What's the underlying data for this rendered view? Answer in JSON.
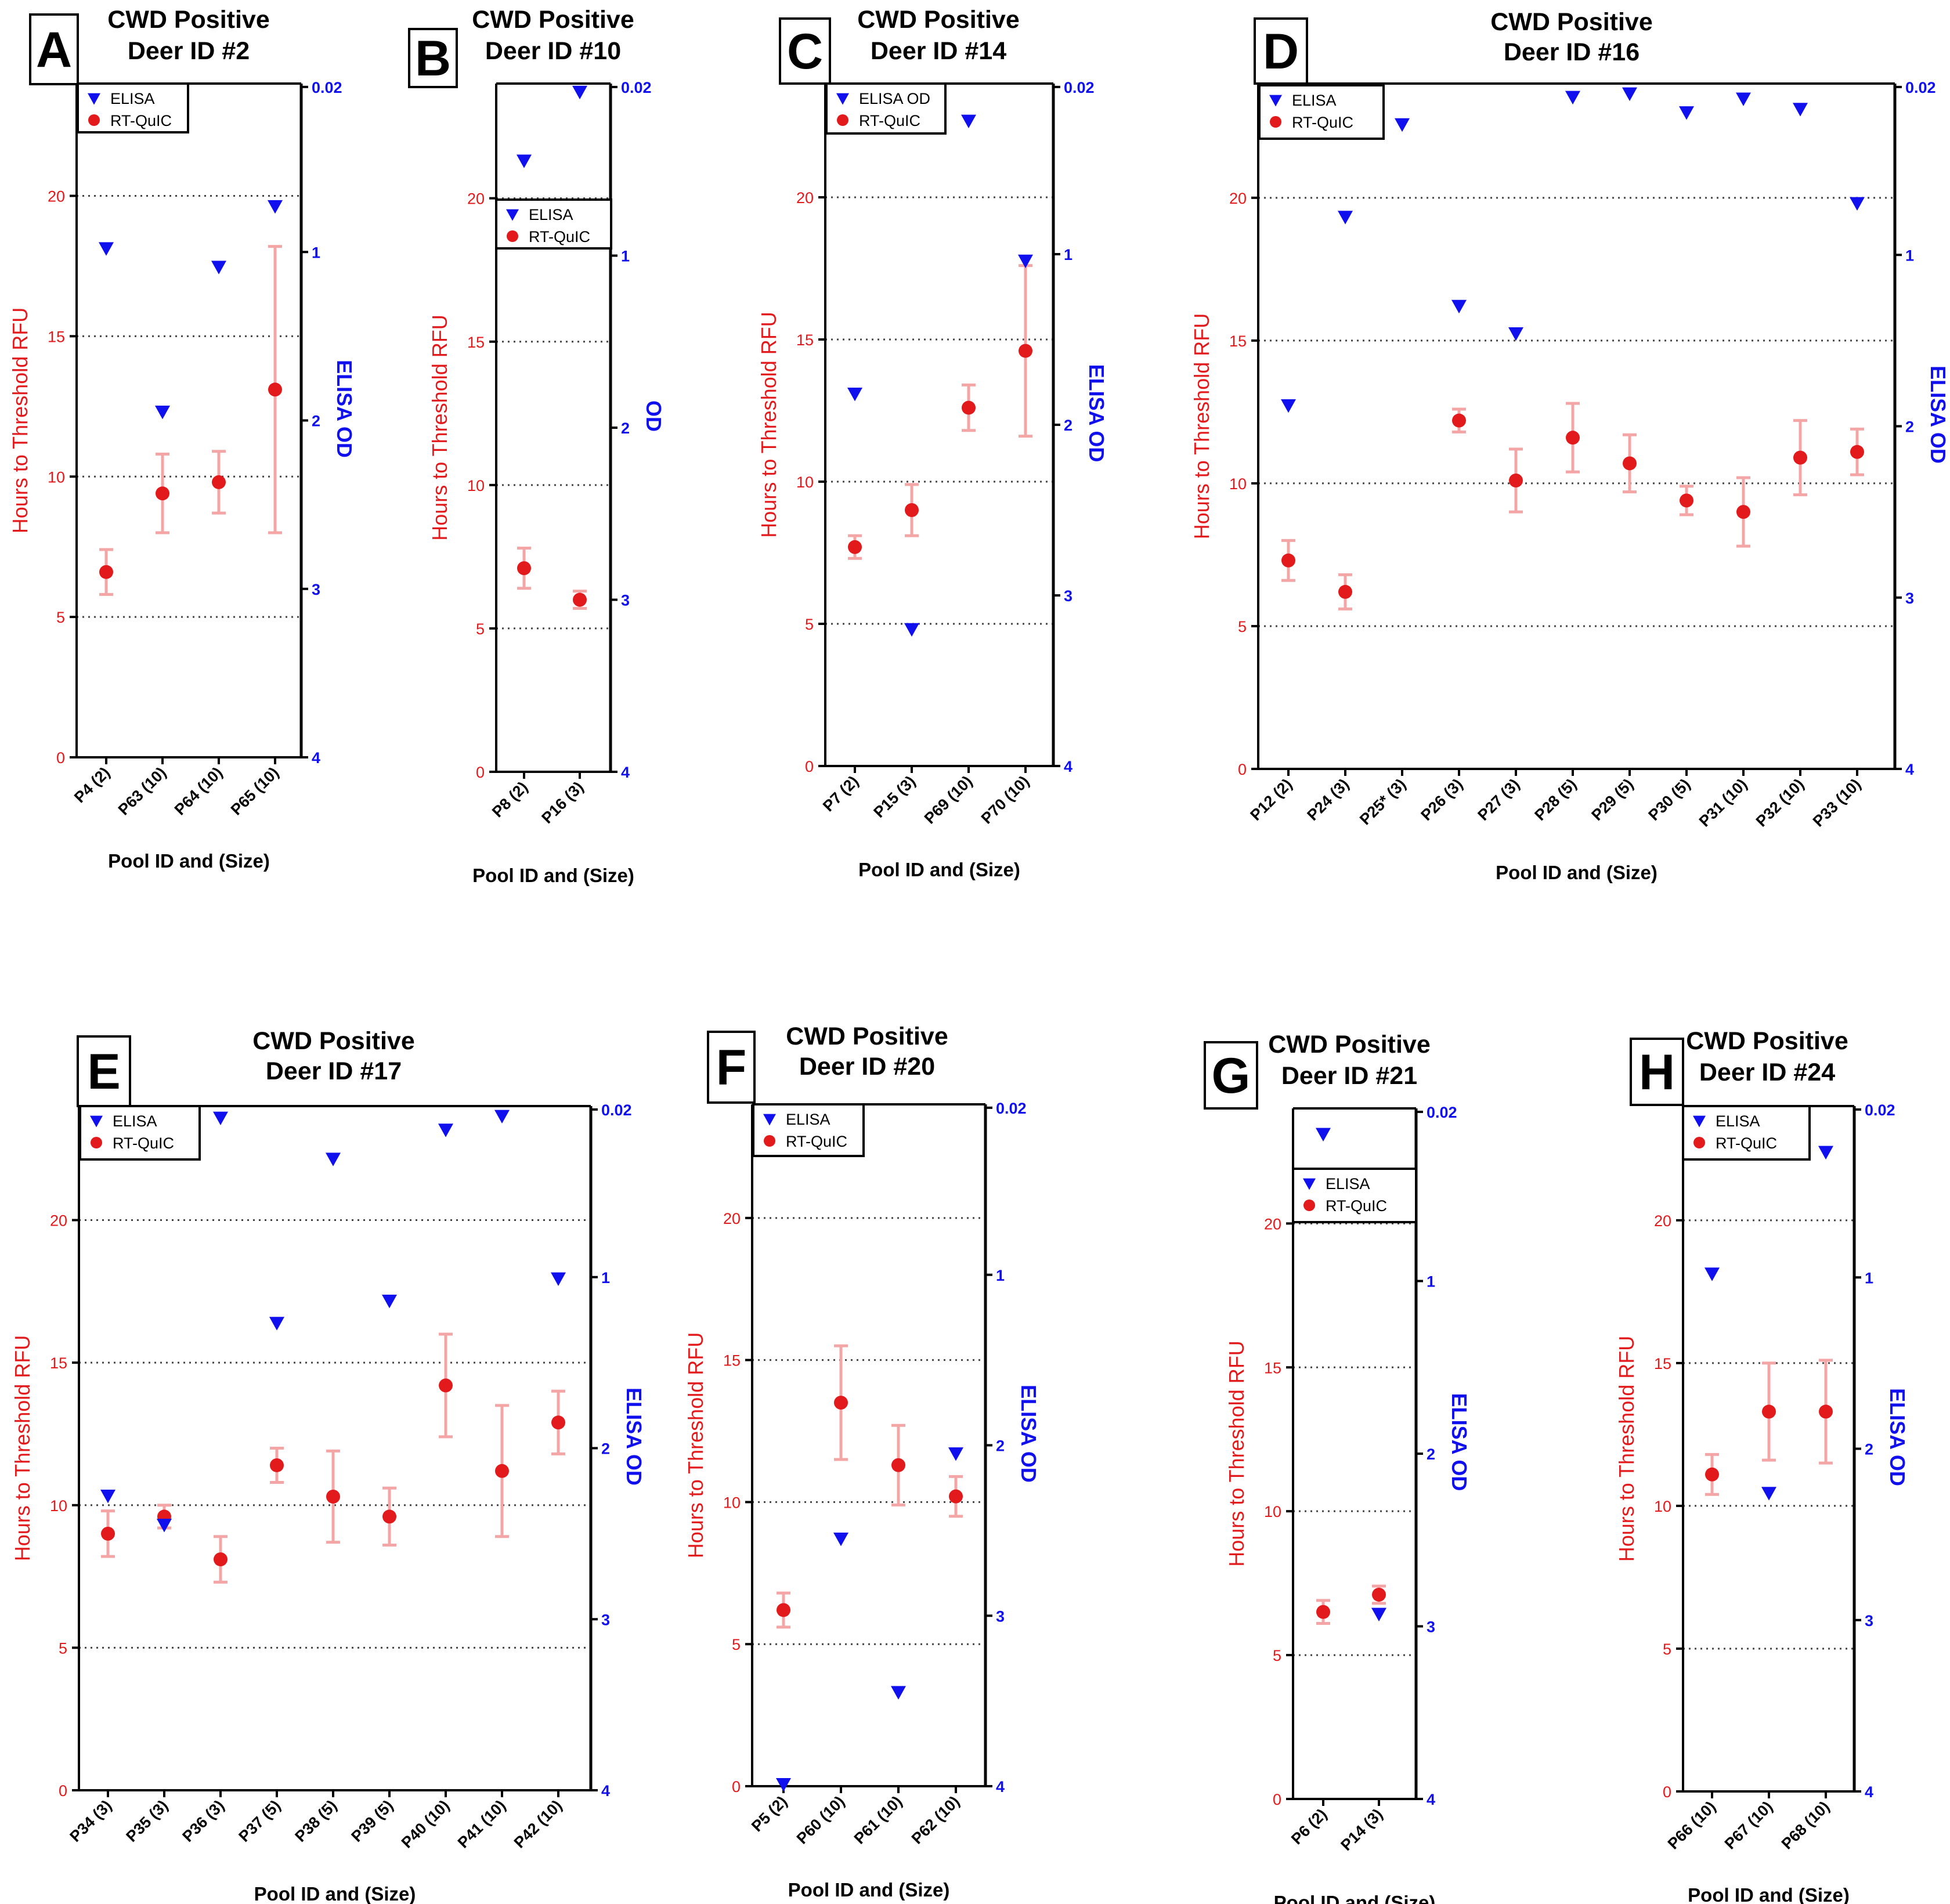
{
  "colors": {
    "rtquic": "#e31a1c",
    "errorbar": "#f4a6a6",
    "elisa": "#1010ee",
    "axis": "#000000",
    "grid": "#444444"
  },
  "chart_data": [
    {
      "type": "scatter",
      "panel": "A",
      "title_line1": "CWD Positive",
      "title_line2": "Deer ID #2",
      "xlabel": "Pool ID and (Size)",
      "ylabel_left": "Hours to Threshold  RFU",
      "ylabel_right": "ELISA OD",
      "ylim_left": [
        0,
        24
      ],
      "left_ticks": [
        0,
        5,
        10,
        15,
        20
      ],
      "right_ticks": [
        0.02,
        1,
        2,
        3,
        4
      ],
      "right_tick_labels": [
        "0.02",
        "1",
        "2",
        "3",
        "4"
      ],
      "legend": [
        "ELISA",
        "RT-QuIC"
      ],
      "categories": [
        "P4 (2)",
        "P63 (10)",
        "P64 (10)",
        "P65 (10)"
      ],
      "rtquic_mean": [
        6.6,
        9.4,
        9.8,
        13.1
      ],
      "rtquic_err": [
        0.8,
        1.4,
        1.1,
        5.1
      ],
      "elisa_od": [
        0.98,
        1.95,
        1.09,
        0.73
      ]
    },
    {
      "type": "scatter",
      "panel": "B",
      "title_line1": "CWD Positive",
      "title_line2": "Deer ID #10",
      "xlabel": "Pool ID and (Size)",
      "ylabel_left": "Hours to Threshold  RFU",
      "ylabel_right": "OD",
      "ylim_left": [
        0,
        24
      ],
      "left_ticks": [
        0,
        5,
        10,
        15,
        20
      ],
      "right_ticks": [
        0.02,
        1,
        2,
        3,
        4
      ],
      "right_tick_labels": [
        "0.02",
        "1",
        "2",
        "3",
        "4"
      ],
      "legend": [
        "ELISA",
        "RT-QuIC"
      ],
      "categories": [
        "P8 (2)",
        "P16 (3)"
      ],
      "rtquic_mean": [
        7.1,
        6.0
      ],
      "rtquic_err": [
        0.7,
        0.3
      ],
      "elisa_od": [
        0.45,
        0.05
      ]
    },
    {
      "type": "scatter",
      "panel": "C",
      "title_line1": "CWD Positive",
      "title_line2": "Deer ID #14",
      "xlabel": "Pool ID and (Size)",
      "ylabel_left": "Hours to Threshold  RFU",
      "ylabel_right": "ELISA OD",
      "ylim_left": [
        0,
        24
      ],
      "left_ticks": [
        0,
        5,
        10,
        15,
        20
      ],
      "right_ticks": [
        0.02,
        1,
        2,
        3,
        4
      ],
      "right_tick_labels": [
        "0.02",
        "1",
        "2",
        "3",
        "4"
      ],
      "legend": [
        "ELISA OD",
        "RT-QuIC"
      ],
      "categories": [
        "P7 (2)",
        "P15 (3)",
        "P69 (10)",
        "P70 (10)"
      ],
      "rtquic_mean": [
        7.7,
        9.0,
        12.6,
        14.6
      ],
      "rtquic_err": [
        0.4,
        0.9,
        0.8,
        3.0
      ],
      "elisa_od": [
        1.82,
        3.2,
        0.22,
        1.04
      ]
    },
    {
      "type": "scatter",
      "panel": "D",
      "title_line1": "CWD Positive",
      "title_line2": "Deer ID #16",
      "xlabel": "Pool ID and (Size)",
      "ylabel_left": "Hours to Threshold  RFU",
      "ylabel_right": "ELISA OD",
      "ylim_left": [
        0,
        24
      ],
      "left_ticks": [
        0,
        5,
        10,
        15,
        20
      ],
      "right_ticks": [
        0.02,
        1,
        2,
        3,
        4
      ],
      "right_tick_labels": [
        "0.02",
        "1",
        "2",
        "3",
        "4"
      ],
      "legend": [
        "ELISA",
        "RT-QuIC"
      ],
      "categories": [
        "P12 (2)",
        "P24 (3)",
        "P25* (3)",
        "P26 (3)",
        "P27 (3)",
        "P28 (5)",
        "P29 (5)",
        "P30 (5)",
        "P31 (10)",
        "P32 (10)",
        "P33 (10)"
      ],
      "rtquic_mean": [
        7.3,
        6.2,
        null,
        12.2,
        10.1,
        11.6,
        10.7,
        9.4,
        9.0,
        10.9,
        11.1
      ],
      "rtquic_err": [
        0.7,
        0.6,
        null,
        0.4,
        1.1,
        1.2,
        1.0,
        0.5,
        1.2,
        1.3,
        0.8
      ],
      "elisa_od": [
        1.88,
        0.78,
        0.24,
        1.3,
        1.46,
        0.08,
        0.06,
        0.17,
        0.09,
        0.15,
        0.7
      ]
    },
    {
      "type": "scatter",
      "panel": "E",
      "title_line1": "CWD Positive",
      "title_line2": "Deer  ID #17",
      "xlabel": "Pool ID and (Size)",
      "ylabel_left": "Hours to Threshold  RFU",
      "ylabel_right": "ELISA OD",
      "ylim_left": [
        0,
        24
      ],
      "left_ticks": [
        0,
        5,
        10,
        15,
        20
      ],
      "right_ticks": [
        0.02,
        1,
        2,
        3,
        4
      ],
      "right_tick_labels": [
        "0.02",
        "1",
        "2",
        "3",
        "4"
      ],
      "legend": [
        "ELISA",
        "RT-QuIC"
      ],
      "categories": [
        "P34 (3)",
        "P35 (3)",
        "P36 (3)",
        "P37 (5)",
        "P38 (5)",
        "P39 (5)",
        "P40 (10)",
        "P41 (10)",
        "P42 (10)"
      ],
      "rtquic_mean": [
        9.0,
        9.6,
        8.1,
        11.4,
        10.3,
        9.6,
        14.2,
        11.2,
        12.9
      ],
      "rtquic_err": [
        0.8,
        0.4,
        0.8,
        0.6,
        1.6,
        1.0,
        1.8,
        2.3,
        1.1
      ],
      "elisa_od": [
        2.28,
        2.45,
        0.07,
        1.27,
        0.31,
        1.14,
        0.14,
        0.06,
        1.01
      ]
    },
    {
      "type": "scatter",
      "panel": "F",
      "title_line1": "CWD Positive",
      "title_line2": "Deer ID #20",
      "xlabel": "Pool ID and (Size)",
      "ylabel_left": "Hours to Threshold  RFU",
      "ylabel_right": "ELISA OD",
      "ylim_left": [
        0,
        24
      ],
      "left_ticks": [
        0,
        5,
        10,
        15,
        20
      ],
      "right_ticks": [
        0.02,
        1,
        2,
        3,
        4
      ],
      "right_tick_labels": [
        "0.02",
        "1",
        "2",
        "3",
        "4"
      ],
      "legend": [
        "ELISA",
        "RT-QuIC"
      ],
      "categories": [
        "P5 (2)",
        "P60 (10)",
        "P61 (10)",
        "P62 (10)"
      ],
      "rtquic_mean": [
        6.2,
        13.5,
        11.3,
        10.2
      ],
      "rtquic_err": [
        0.6,
        2.0,
        1.4,
        0.7
      ],
      "elisa_od": [
        3.99,
        2.55,
        3.45,
        2.05
      ]
    },
    {
      "type": "scatter",
      "panel": "G",
      "title_line1": "CWD Positive",
      "title_line2": "Deer ID #21",
      "xlabel": "Pool ID and (Size)",
      "ylabel_left": "Hours to Threshold  RFU",
      "ylabel_right": "ELISA OD",
      "ylim_left": [
        0,
        24
      ],
      "left_ticks": [
        0,
        5,
        10,
        15,
        20
      ],
      "right_ticks": [
        0.02,
        1,
        2,
        3,
        4
      ],
      "right_tick_labels": [
        "0.02",
        "1",
        "2",
        "3",
        "4"
      ],
      "legend": [
        "ELISA",
        "RT-QuIC"
      ],
      "categories": [
        "P6 (2)",
        "P14 (3)"
      ],
      "rtquic_mean": [
        6.5,
        7.1
      ],
      "rtquic_err": [
        0.4,
        0.3
      ],
      "elisa_od": [
        0.15,
        2.93
      ]
    },
    {
      "type": "scatter",
      "panel": "H",
      "title_line1": "CWD Positive",
      "title_line2": "Deer ID #24",
      "xlabel": "Pool ID and (Size)",
      "ylabel_left": "Hours to Threshold  RFU",
      "ylabel_right": "ELISA OD",
      "ylim_left": [
        0,
        24
      ],
      "left_ticks": [
        0,
        5,
        10,
        15,
        20
      ],
      "right_ticks": [
        0.02,
        1,
        2,
        3,
        4
      ],
      "right_tick_labels": [
        "0.02",
        "1",
        "2",
        "3",
        "4"
      ],
      "legend": [
        "ELISA",
        "RT-QuIC"
      ],
      "categories": [
        "P66 (10)",
        "P67 (10)",
        "P68 (10)"
      ],
      "rtquic_mean": [
        11.1,
        13.3,
        13.3
      ],
      "rtquic_err": [
        0.7,
        1.7,
        1.8
      ],
      "elisa_od": [
        0.98,
        2.26,
        0.27
      ]
    }
  ]
}
